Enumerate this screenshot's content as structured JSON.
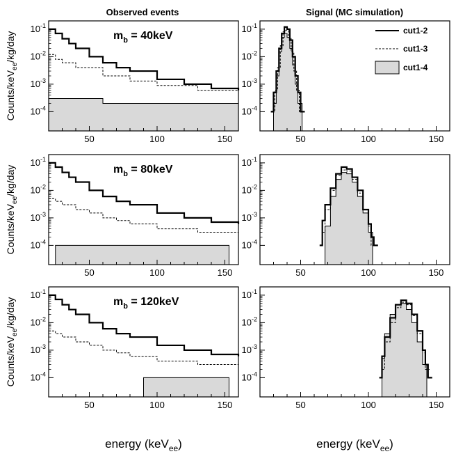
{
  "column_titles": {
    "left": "Observed events",
    "right": "Signal (MC simulation)"
  },
  "ylabel": {
    "pre": "Counts/keV",
    "sub": "ee",
    "post": "/kg/day"
  },
  "xlabel": {
    "pre": "energy (keV",
    "sub": "ee",
    "post": ")"
  },
  "legend": [
    {
      "label": "cut1-2",
      "style": "solid"
    },
    {
      "label": "cut1-3",
      "style": "dashed"
    },
    {
      "label": "cut1-4",
      "style": "filled"
    }
  ],
  "colors": {
    "fill": "#d9d9d9",
    "line": "#000000"
  },
  "chart_data": [
    {
      "panel": "observed-40",
      "type": "histogram",
      "yscale": "log",
      "xlim": [
        20,
        160
      ],
      "ylim": [
        2e-05,
        0.2
      ],
      "xticks": [
        50,
        100,
        150
      ],
      "yticks": [
        "10-4",
        "10-3",
        "10-2",
        "10-1"
      ],
      "annotation": {
        "pre": "m",
        "sub": "b",
        "post": " = 40keV"
      },
      "series": [
        {
          "name": "cut1-2",
          "x": [
            20,
            25,
            30,
            35,
            40,
            50,
            60,
            70,
            80,
            100,
            120,
            140,
            160
          ],
          "values": [
            0.1,
            0.07,
            0.045,
            0.03,
            0.02,
            0.01,
            0.006,
            0.004,
            0.003,
            0.0015,
            0.001,
            0.0007,
            0.0006
          ]
        },
        {
          "name": "cut1-3",
          "x": [
            20,
            25,
            30,
            40,
            60,
            80,
            100,
            130,
            160
          ],
          "values": [
            0.012,
            0.008,
            0.006,
            0.004,
            0.002,
            0.0013,
            0.0009,
            0.0006,
            0.0005
          ]
        },
        {
          "name": "cut1-4",
          "x": [
            20,
            40,
            60,
            80,
            100,
            120,
            140,
            160
          ],
          "values": [
            0.0003,
            0.0003,
            0.0002,
            0.0002,
            0.0002,
            0.0002,
            0.0002,
            0.0002
          ]
        }
      ]
    },
    {
      "panel": "signal-40",
      "type": "histogram",
      "yscale": "log",
      "xlim": [
        20,
        160
      ],
      "ylim": [
        2e-05,
        0.2
      ],
      "xticks": [
        50,
        100,
        150
      ],
      "yticks": [
        "10-4",
        "10-3",
        "10-2",
        "10-1"
      ],
      "series": [
        {
          "name": "cut1-2",
          "x": [
            28,
            30,
            32,
            34,
            36,
            38,
            40,
            42,
            44,
            46,
            48,
            50
          ],
          "values": [
            0.0001,
            0.0005,
            0.003,
            0.02,
            0.07,
            0.12,
            0.1,
            0.04,
            0.01,
            0.002,
            0.0005,
            0.0001
          ]
        },
        {
          "name": "cut1-3",
          "x": [
            29,
            31,
            33,
            35,
            37,
            39,
            41,
            43,
            45,
            47,
            49
          ],
          "values": [
            0.0001,
            0.0006,
            0.004,
            0.025,
            0.08,
            0.09,
            0.05,
            0.015,
            0.003,
            0.0006,
            0.0001
          ]
        },
        {
          "name": "cut1-4",
          "x": [
            30,
            32,
            34,
            36,
            38,
            40,
            42,
            44,
            46,
            48
          ],
          "values": [
            0.0002,
            0.002,
            0.015,
            0.05,
            0.07,
            0.05,
            0.02,
            0.005,
            0.001,
            0.0002
          ]
        }
      ]
    },
    {
      "panel": "observed-80",
      "type": "histogram",
      "yscale": "log",
      "xlim": [
        20,
        160
      ],
      "ylim": [
        2e-05,
        0.2
      ],
      "xticks": [
        50,
        100,
        150
      ],
      "yticks": [
        "10-4",
        "10-3",
        "10-2",
        "10-1"
      ],
      "annotation": {
        "pre": "m",
        "sub": "b",
        "post": " = 80keV"
      },
      "series": [
        {
          "name": "cut1-2",
          "x": [
            20,
            25,
            30,
            35,
            40,
            50,
            60,
            70,
            80,
            100,
            120,
            140,
            160
          ],
          "values": [
            0.1,
            0.07,
            0.045,
            0.03,
            0.02,
            0.01,
            0.006,
            0.004,
            0.003,
            0.0015,
            0.001,
            0.0007,
            0.0006
          ]
        },
        {
          "name": "cut1-3",
          "x": [
            20,
            25,
            30,
            40,
            50,
            60,
            70,
            80,
            100,
            130,
            160
          ],
          "values": [
            0.005,
            0.004,
            0.003,
            0.002,
            0.0015,
            0.001,
            0.0008,
            0.0006,
            0.0004,
            0.0003,
            0.0003
          ]
        },
        {
          "name": "cut1-4",
          "x": [
            25,
            60,
            90,
            110,
            130,
            150
          ],
          "values": [
            0.0001,
            0.0001,
            0.0001,
            0.0001,
            0.0001,
            0.0001
          ]
        }
      ]
    },
    {
      "panel": "signal-80",
      "type": "histogram",
      "yscale": "log",
      "xlim": [
        20,
        160
      ],
      "ylim": [
        2e-05,
        0.2
      ],
      "xticks": [
        50,
        100,
        150
      ],
      "yticks": [
        "10-4",
        "10-3",
        "10-2",
        "10-1"
      ],
      "series": [
        {
          "name": "cut1-2",
          "x": [
            64,
            66,
            68,
            72,
            76,
            80,
            84,
            88,
            92,
            96,
            100,
            102,
            104
          ],
          "values": [
            0.0001,
            0.0008,
            0.003,
            0.012,
            0.04,
            0.07,
            0.06,
            0.03,
            0.01,
            0.002,
            0.0006,
            0.0002,
            0.0001
          ]
        },
        {
          "name": "cut1-3",
          "x": [
            66,
            68,
            72,
            76,
            80,
            84,
            88,
            92,
            96,
            100,
            102
          ],
          "values": [
            0.0003,
            0.002,
            0.01,
            0.035,
            0.055,
            0.05,
            0.025,
            0.008,
            0.002,
            0.0005,
            0.0001
          ]
        },
        {
          "name": "cut1-4",
          "x": [
            68,
            72,
            76,
            80,
            84,
            88,
            92,
            96,
            100
          ],
          "values": [
            0.0005,
            0.006,
            0.025,
            0.045,
            0.04,
            0.02,
            0.006,
            0.0015,
            0.0003
          ]
        }
      ]
    },
    {
      "panel": "observed-120",
      "type": "histogram",
      "yscale": "log",
      "xlim": [
        20,
        160
      ],
      "ylim": [
        2e-05,
        0.2
      ],
      "xticks": [
        50,
        100,
        150
      ],
      "yticks": [
        "10-4",
        "10-3",
        "10-2",
        "10-1"
      ],
      "annotation": {
        "pre": "m",
        "sub": "b",
        "post": " = 120keV"
      },
      "series": [
        {
          "name": "cut1-2",
          "x": [
            20,
            25,
            30,
            35,
            40,
            50,
            60,
            70,
            80,
            100,
            120,
            140,
            160
          ],
          "values": [
            0.1,
            0.07,
            0.045,
            0.03,
            0.02,
            0.01,
            0.006,
            0.004,
            0.003,
            0.0015,
            0.001,
            0.0007,
            0.0006
          ]
        },
        {
          "name": "cut1-3",
          "x": [
            20,
            25,
            30,
            40,
            50,
            60,
            70,
            80,
            100,
            130,
            160
          ],
          "values": [
            0.005,
            0.004,
            0.003,
            0.002,
            0.0015,
            0.001,
            0.0008,
            0.0006,
            0.0004,
            0.0003,
            0.0003
          ]
        },
        {
          "name": "cut1-4",
          "x": [
            90,
            110,
            130,
            150
          ],
          "values": [
            0.0001,
            0.0001,
            0.0001,
            0.0001
          ]
        }
      ]
    },
    {
      "panel": "signal-120",
      "type": "histogram",
      "yscale": "log",
      "xlim": [
        20,
        160
      ],
      "ylim": [
        2e-05,
        0.2
      ],
      "xticks": [
        50,
        100,
        150
      ],
      "yticks": [
        "10-4",
        "10-3",
        "10-2",
        "10-1"
      ],
      "series": [
        {
          "name": "cut1-2",
          "x": [
            108,
            110,
            112,
            116,
            120,
            124,
            128,
            132,
            136,
            140,
            142,
            144
          ],
          "values": [
            0.0001,
            0.0006,
            0.003,
            0.015,
            0.045,
            0.065,
            0.05,
            0.02,
            0.005,
            0.001,
            0.0003,
            0.0001
          ]
        },
        {
          "name": "cut1-3",
          "x": [
            110,
            112,
            116,
            120,
            124,
            128,
            132,
            136,
            140,
            142
          ],
          "values": [
            0.0002,
            0.002,
            0.01,
            0.035,
            0.055,
            0.045,
            0.018,
            0.004,
            0.0008,
            0.0002
          ]
        },
        {
          "name": "cut1-4",
          "x": [
            110,
            112,
            116,
            120,
            124,
            128,
            132,
            136,
            140
          ],
          "values": [
            0.0005,
            0.004,
            0.02,
            0.045,
            0.05,
            0.03,
            0.01,
            0.002,
            0.0003
          ]
        }
      ]
    }
  ]
}
